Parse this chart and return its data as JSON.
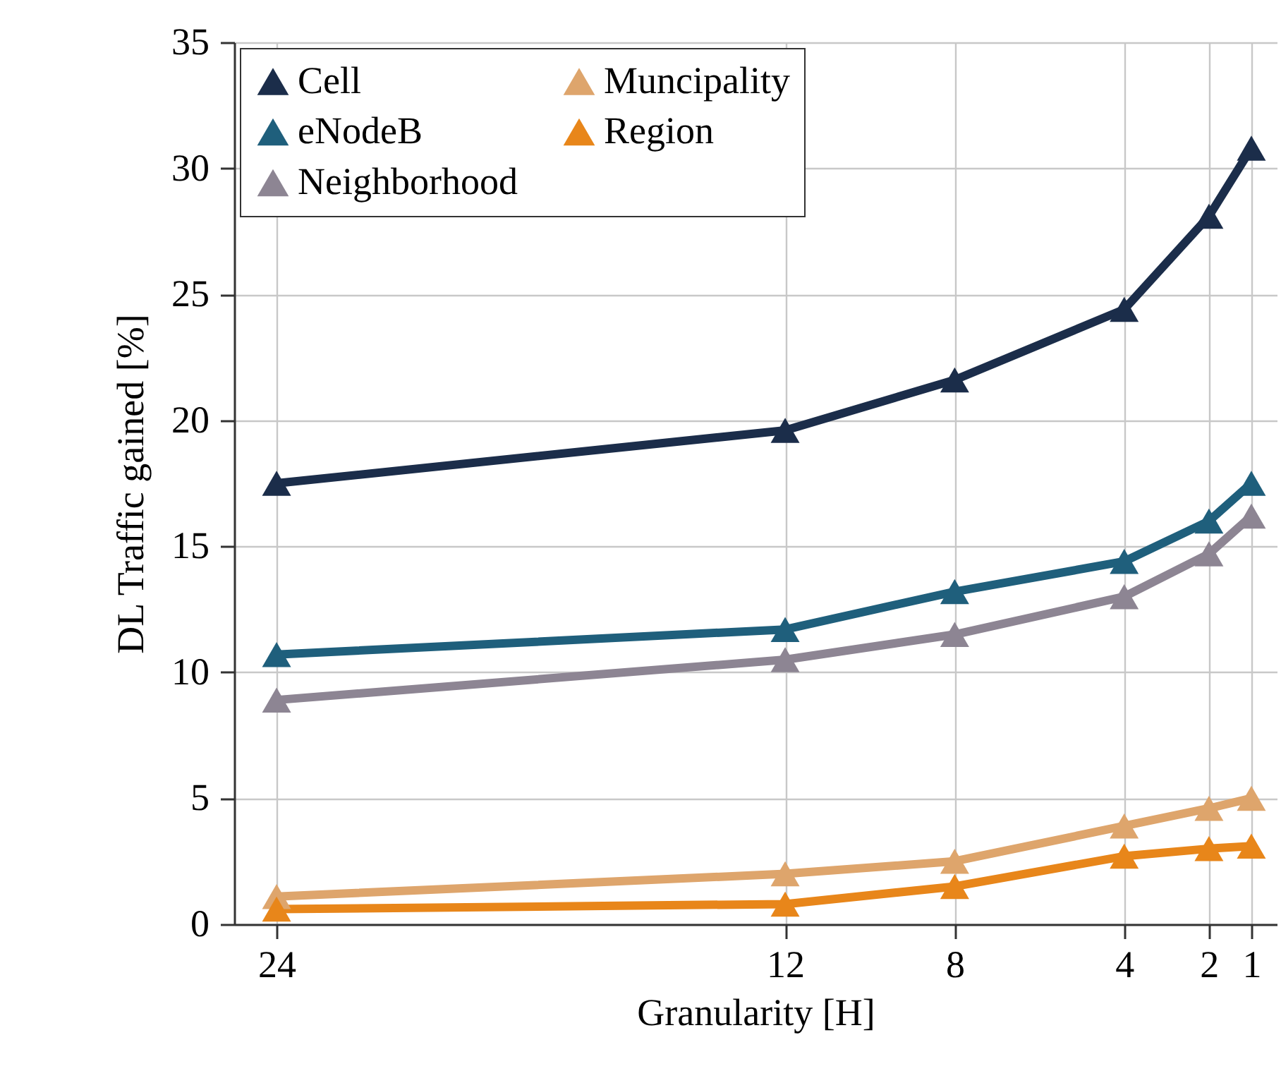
{
  "chart_data": {
    "type": "line",
    "xlabel": "Granularity [H]",
    "ylabel": "DL Traffic gained [%]",
    "x": [
      24,
      12,
      8,
      4,
      2,
      1
    ],
    "series": [
      {
        "name": "Cell",
        "color": "#1b2d4a",
        "values": [
          17.5,
          19.6,
          21.6,
          24.4,
          28.1,
          30.8
        ]
      },
      {
        "name": "eNodeB",
        "color": "#1f5f7c",
        "values": [
          10.7,
          11.7,
          13.2,
          14.4,
          16.0,
          17.5
        ]
      },
      {
        "name": "Neighborhood",
        "color": "#8d8593",
        "values": [
          8.9,
          10.5,
          11.5,
          13.0,
          14.7,
          16.2
        ]
      },
      {
        "name": "Muncipality",
        "color": "#dea56c",
        "values": [
          1.1,
          2.0,
          2.5,
          3.9,
          4.6,
          5.0
        ]
      },
      {
        "name": "Region",
        "color": "#e8861a",
        "values": [
          0.6,
          0.8,
          1.5,
          2.7,
          3.0,
          3.1
        ]
      }
    ],
    "xlim": [
      25,
      0.4
    ],
    "xticks": [
      24,
      12,
      8,
      4,
      2,
      1
    ],
    "ylim": [
      0,
      35
    ],
    "yticks": [
      0,
      5,
      10,
      15,
      20,
      25,
      30,
      35
    ],
    "grid": true,
    "legend": "top left",
    "marker": "triangle",
    "line_style": "solid"
  }
}
